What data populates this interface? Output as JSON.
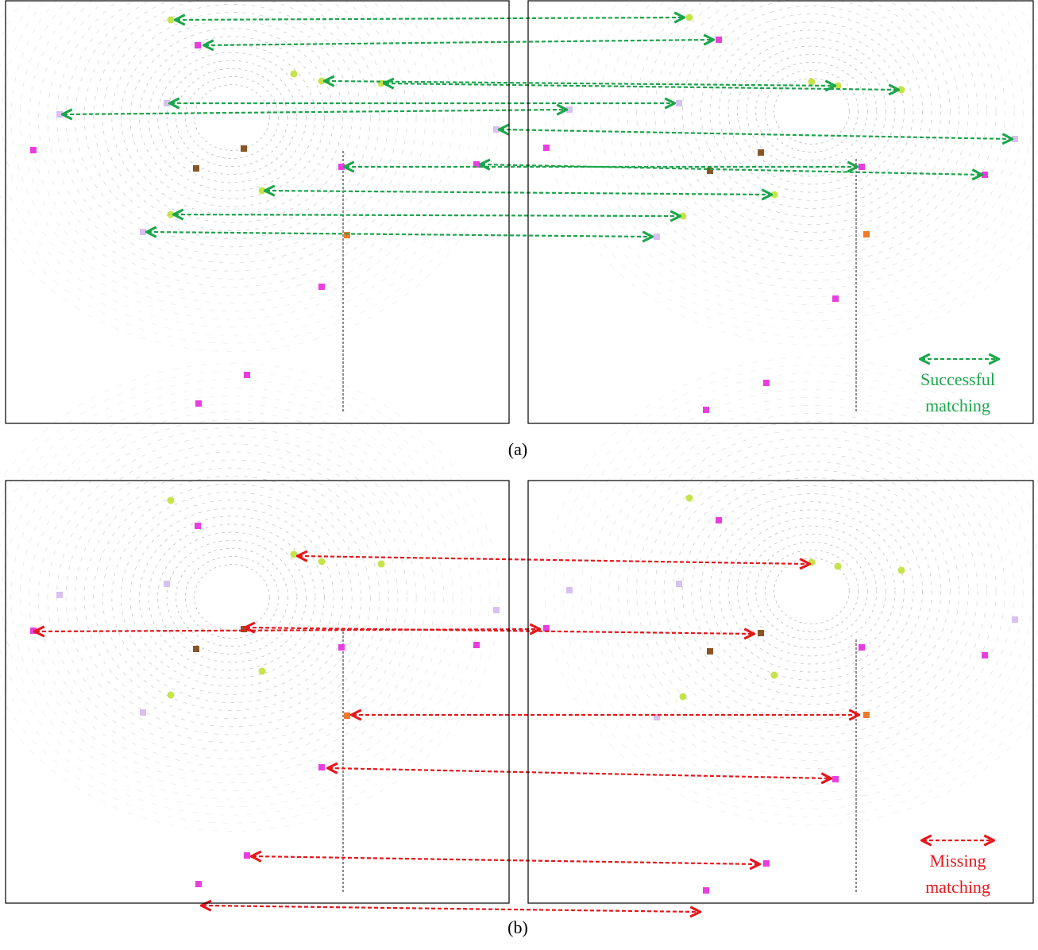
{
  "panel_a": {
    "legend_lines": [
      "Successful",
      "matching"
    ],
    "caption": "(a)"
  },
  "panel_b": {
    "legend_lines": [
      "Missing",
      "matching"
    ],
    "caption": "(b)"
  }
}
